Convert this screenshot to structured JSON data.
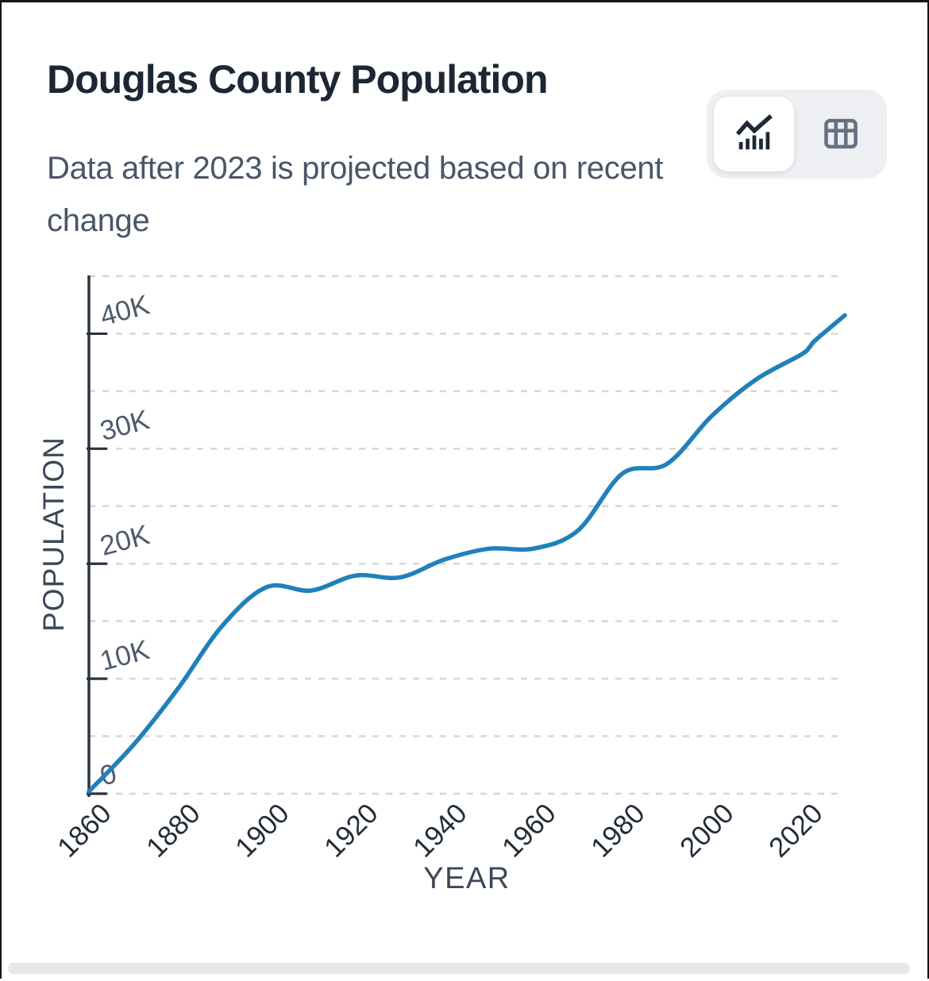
{
  "header": {
    "title": "Douglas County Population",
    "subtitle": "Data after 2023 is projected based on recent change"
  },
  "view_toggle": {
    "active_view": "chart",
    "chart_view_label": "Chart view",
    "table_view_label": "Table view"
  },
  "colors": {
    "line": "#2081ba",
    "grid": "#d6d6db",
    "axis": "#2a3342",
    "y_tick_label": "#4f5b6b",
    "x_tick_label": "#232c39",
    "axis_title": "#3c4757",
    "toggle_bg": "#edeff3",
    "active_icon": "#1e2836",
    "inactive_icon": "#657083"
  },
  "chart_data": {
    "type": "line",
    "title": "Douglas County Population",
    "xlabel": "YEAR",
    "ylabel": "POPULATION",
    "xlim": [
      1860,
      2030
    ],
    "ylim": [
      0,
      45000
    ],
    "grid": true,
    "grid_step": 5000,
    "xticks": [
      1860,
      1880,
      1900,
      1920,
      1940,
      1960,
      1980,
      2000,
      2020
    ],
    "yticks": [
      {
        "value": 0,
        "label": "0"
      },
      {
        "value": 10000,
        "label": "10K"
      },
      {
        "value": 20000,
        "label": "20K"
      },
      {
        "value": 30000,
        "label": "30K"
      },
      {
        "value": 40000,
        "label": "40K"
      }
    ],
    "series": [
      {
        "name": "Population",
        "projected_after": 2023,
        "points": [
          {
            "year": 1860,
            "value": 195
          },
          {
            "year": 1870,
            "value": 4239
          },
          {
            "year": 1880,
            "value": 9130
          },
          {
            "year": 1890,
            "value": 14606
          },
          {
            "year": 1900,
            "value": 17964
          },
          {
            "year": 1910,
            "value": 17669
          },
          {
            "year": 1920,
            "value": 18969
          },
          {
            "year": 1930,
            "value": 18813
          },
          {
            "year": 1940,
            "value": 20369
          },
          {
            "year": 1950,
            "value": 21304
          },
          {
            "year": 1960,
            "value": 21313
          },
          {
            "year": 1970,
            "value": 22892
          },
          {
            "year": 1980,
            "value": 27839
          },
          {
            "year": 1990,
            "value": 28674
          },
          {
            "year": 2000,
            "value": 32821
          },
          {
            "year": 2010,
            "value": 36009
          },
          {
            "year": 2020,
            "value": 38141
          },
          {
            "year": 2022,
            "value": 38800
          },
          {
            "year": 2023,
            "value": 39300
          },
          {
            "year": 2026,
            "value": 40300
          },
          {
            "year": 2030,
            "value": 41600
          }
        ]
      }
    ]
  }
}
